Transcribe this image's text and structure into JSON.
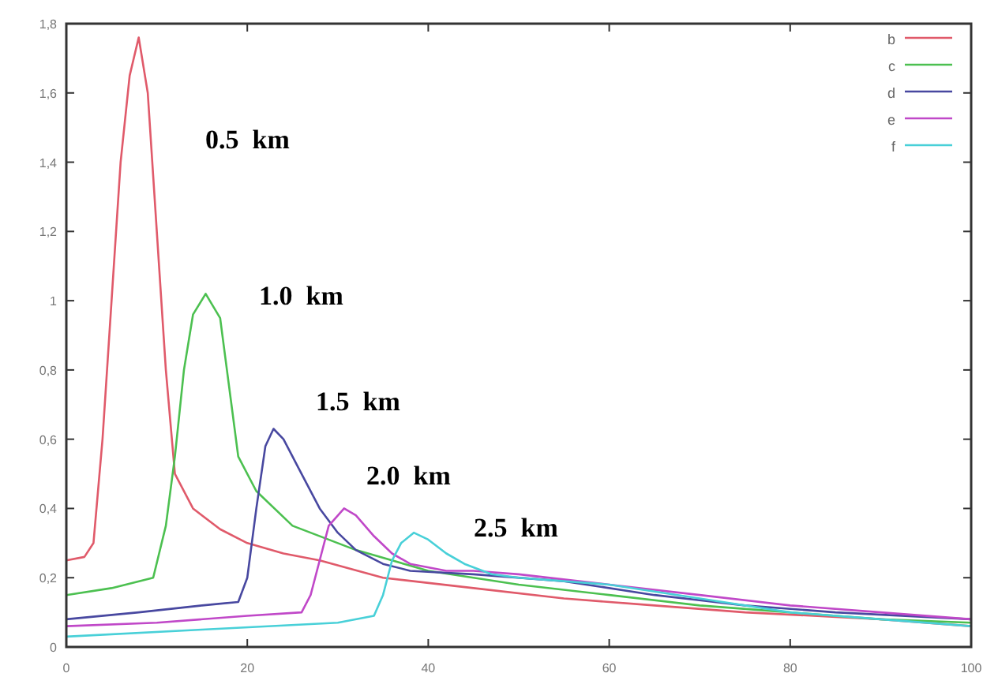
{
  "chart_data": {
    "type": "line",
    "xlim": [
      0,
      100
    ],
    "ylim": [
      0,
      1.8
    ],
    "xticks": [
      0,
      20,
      40,
      60,
      80,
      100
    ],
    "yticks": [
      0,
      {
        "value": 0.2,
        "label": "0,2"
      },
      {
        "value": 0.4,
        "label": "0,4"
      },
      {
        "value": 0.6,
        "label": "0,6"
      },
      {
        "value": 0.8,
        "label": "0,8"
      },
      1,
      {
        "value": 1.2,
        "label": "1,2"
      },
      {
        "value": 1.4,
        "label": "1,4"
      },
      {
        "value": 1.6,
        "label": "1,6"
      },
      {
        "value": 1.8,
        "label": "1,8"
      }
    ],
    "grid": false,
    "legend": "top right",
    "marker": "none",
    "line_style": "solid",
    "series": [
      {
        "name": "b",
        "color": "#e05a6a",
        "x": [
          0,
          2,
          3,
          4,
          5,
          6,
          7,
          8,
          9,
          10,
          11,
          12,
          14,
          17,
          20,
          24,
          28,
          35,
          45,
          55,
          65,
          75,
          90,
          100
        ],
        "values": [
          0.25,
          0.26,
          0.3,
          0.6,
          1.0,
          1.4,
          1.65,
          1.76,
          1.6,
          1.2,
          0.8,
          0.5,
          0.4,
          0.34,
          0.3,
          0.27,
          0.25,
          0.2,
          0.17,
          0.14,
          0.12,
          0.1,
          0.08,
          0.06
        ]
      },
      {
        "name": "c",
        "color": "#4cc050",
        "x": [
          0,
          5,
          9.6,
          11,
          12,
          13,
          14,
          15.4,
          17,
          18,
          19,
          21,
          25,
          32,
          40,
          50,
          60,
          70,
          80,
          90,
          100
        ],
        "values": [
          0.15,
          0.17,
          0.2,
          0.35,
          0.55,
          0.8,
          0.96,
          1.02,
          0.95,
          0.75,
          0.55,
          0.45,
          0.35,
          0.28,
          0.22,
          0.18,
          0.15,
          0.12,
          0.1,
          0.08,
          0.07
        ]
      },
      {
        "name": "d",
        "color": "#4848a0",
        "x": [
          0,
          8,
          15,
          19,
          20,
          21,
          22,
          22.9,
          24,
          26,
          28,
          30,
          32,
          35,
          38,
          45,
          55,
          65,
          75,
          85,
          100
        ],
        "values": [
          0.08,
          0.1,
          0.12,
          0.13,
          0.2,
          0.4,
          0.58,
          0.63,
          0.6,
          0.5,
          0.4,
          0.33,
          0.28,
          0.24,
          0.22,
          0.21,
          0.19,
          0.15,
          0.12,
          0.1,
          0.08
        ]
      },
      {
        "name": "e",
        "color": "#c048c8",
        "x": [
          0,
          10,
          20,
          26,
          27,
          28,
          29,
          30.7,
          32,
          34,
          36,
          38,
          42,
          45,
          50,
          60,
          70,
          80,
          90,
          100
        ],
        "values": [
          0.06,
          0.07,
          0.09,
          0.1,
          0.15,
          0.25,
          0.35,
          0.4,
          0.38,
          0.32,
          0.27,
          0.24,
          0.22,
          0.22,
          0.21,
          0.18,
          0.15,
          0.12,
          0.1,
          0.08
        ]
      },
      {
        "name": "f",
        "color": "#48d0d8",
        "x": [
          0,
          15,
          30,
          34,
          35,
          36,
          37,
          38.4,
          40,
          42,
          44,
          47,
          50,
          60,
          70,
          80,
          90,
          100
        ],
        "values": [
          0.03,
          0.05,
          0.07,
          0.09,
          0.15,
          0.25,
          0.3,
          0.33,
          0.31,
          0.27,
          0.24,
          0.21,
          0.2,
          0.18,
          0.14,
          0.1,
          0.08,
          0.06
        ]
      }
    ],
    "annotations": [
      "0.5  km",
      "1.0  km",
      "1.5  km",
      "2.0  km",
      "2.5  km"
    ]
  }
}
